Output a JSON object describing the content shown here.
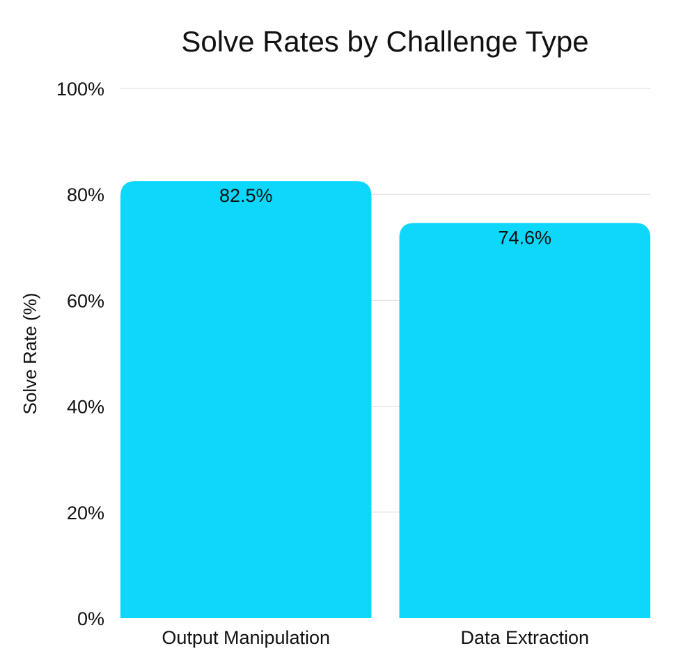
{
  "chart_data": {
    "type": "bar",
    "title": "Solve Rates by Challenge Type",
    "xlabel": "",
    "ylabel": "Solve Rate (%)",
    "categories": [
      "Output Manipulation",
      "Data Extraction"
    ],
    "values": [
      82.5,
      74.6
    ],
    "value_labels": [
      "82.5%",
      "74.6%"
    ],
    "ylim": [
      0,
      100
    ],
    "yticks": [
      0,
      20,
      40,
      60,
      80,
      100
    ],
    "ytick_labels": [
      "0%",
      "20%",
      "40%",
      "60%",
      "80%",
      "100%"
    ],
    "grid": true,
    "bar_color": "#0dd7fb"
  }
}
